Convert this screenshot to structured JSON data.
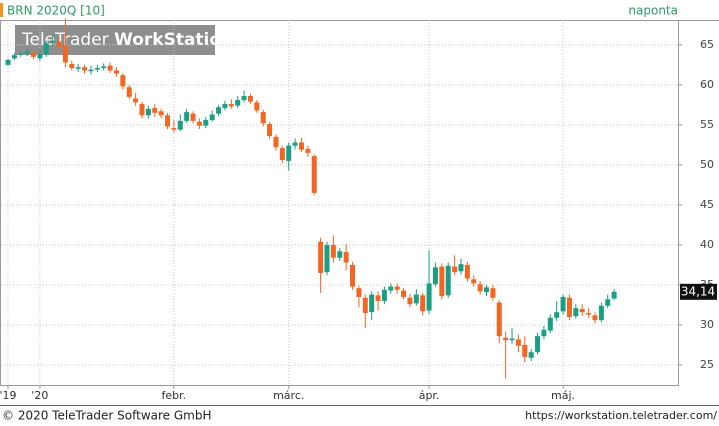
{
  "chart_data": {
    "type": "candlestick",
    "title": "BRN 2020Q [10]",
    "interval": "naponta",
    "watermark": [
      "TeleTrader",
      "WorkStation"
    ],
    "footer_left": "© 2020 TeleTrader Software GmbH",
    "footer_right": "https://workstation.teletrader.com/",
    "categories": [
      null,
      null,
      null,
      null,
      null,
      null,
      null,
      null,
      null,
      null,
      null,
      null,
      null,
      null,
      null,
      null,
      null,
      null,
      null,
      null,
      null,
      null,
      null,
      null,
      null,
      null,
      null,
      null,
      null,
      null,
      null,
      null,
      null,
      null,
      null,
      null,
      null,
      null,
      null,
      null,
      null,
      null,
      null,
      null,
      null,
      null,
      null,
      null,
      null,
      null,
      null,
      null,
      null,
      null,
      null,
      null,
      null,
      null,
      null,
      null,
      null,
      null,
      null,
      null,
      null,
      null,
      null,
      null,
      null,
      null,
      null,
      null,
      null,
      null,
      null,
      null,
      null,
      null,
      null,
      null,
      null,
      null,
      null,
      null,
      null,
      null,
      null,
      null,
      null,
      null,
      null,
      null,
      null,
      null,
      null,
      null
    ],
    "open": [
      62.5,
      63.3,
      63.8,
      63.9,
      64,
      63.3,
      63.8,
      65.3,
      65.4,
      64.9,
      62.6,
      62,
      62.2,
      61.7,
      61.9,
      62.1,
      62.4,
      61.8,
      61.2,
      59.7,
      58.3,
      57.6,
      56.2,
      57.1,
      56.7,
      56.2,
      54.6,
      54.4,
      55.5,
      56.4,
      55.4,
      54.9,
      55.6,
      56.4,
      57.1,
      57.6,
      57.4,
      58.1,
      58.6,
      57.8,
      56.6,
      55.1,
      53.5,
      52.1,
      50.5,
      52.4,
      52.8,
      52,
      51.1,
      40.4,
      36.6,
      40,
      38.4,
      39.1,
      37.5,
      34.6,
      33.4,
      31.6,
      33.7,
      33,
      34.3,
      34.8,
      34.3,
      33.4,
      32.7,
      33.7,
      31.8,
      35.1,
      37.3,
      33.7,
      37.3,
      36.7,
      37.5,
      35.7,
      35.1,
      34.1,
      34.6,
      32.8,
      28.4,
      28.1,
      28.2,
      27.5,
      25.9,
      26.6,
      28.6,
      29.3,
      30.9,
      31.7,
      33.4,
      31.1,
      32,
      31.5,
      31.2,
      30.6,
      32.4,
      33.3
    ],
    "high": [
      63.3,
      64,
      64.3,
      64.5,
      64.3,
      64.4,
      65.5,
      66.3,
      66,
      68.3,
      63,
      62.6,
      62.5,
      62.4,
      62.5,
      62.7,
      62.8,
      62.2,
      61.5,
      60,
      59,
      57.9,
      57.4,
      57.6,
      57,
      56.5,
      55.6,
      56.3,
      57,
      56.7,
      55.8,
      56,
      56.8,
      57.5,
      58,
      58.2,
      58.6,
      59.3,
      58.9,
      58.1,
      56.9,
      55.4,
      53.8,
      52.4,
      52.8,
      53.3,
      53.4,
      52.4,
      51.3,
      40.9,
      40.4,
      41.2,
      39.6,
      40.1,
      37.9,
      34.9,
      33.8,
      34.2,
      34.2,
      34.8,
      35.2,
      35.2,
      34.6,
      33.9,
      34.5,
      34,
      39.3,
      37.8,
      37.7,
      37.8,
      38.7,
      38.3,
      37.9,
      36.2,
      35.5,
      35,
      35,
      33.1,
      29.2,
      29.6,
      28.8,
      28.6,
      27,
      29,
      29.9,
      31.3,
      33,
      33.8,
      33.8,
      32.6,
      32.6,
      32.1,
      31.6,
      32.8,
      33.8,
      34.5
    ],
    "low": [
      62.3,
      63.1,
      63.5,
      63.6,
      63.2,
      63,
      63.5,
      64.8,
      64.5,
      62.2,
      61.8,
      61.6,
      61.4,
      61.3,
      61.6,
      61.8,
      61.5,
      61,
      59.4,
      58.2,
      57.4,
      55.8,
      55.8,
      56,
      55.8,
      54.5,
      54,
      54.2,
      55.2,
      55.2,
      54.5,
      54.6,
      55.4,
      56.1,
      56.8,
      57,
      57.1,
      57.8,
      57.6,
      56.5,
      54.8,
      53.2,
      51.8,
      50.2,
      49.3,
      51.9,
      51.6,
      51,
      46.2,
      34,
      36.2,
      37.8,
      38,
      36.8,
      34.4,
      32.2,
      29.6,
      30.6,
      31.8,
      32.6,
      33.9,
      33.9,
      33.2,
      32.2,
      32.4,
      31.2,
      31.4,
      34.8,
      33.2,
      33.4,
      36.2,
      36.3,
      35.4,
      34.8,
      33.8,
      33.6,
      33,
      27.7,
      23.3,
      27.6,
      26.6,
      25.3,
      25.5,
      26.3,
      28.2,
      29,
      30.5,
      31.3,
      30.6,
      30.8,
      31.1,
      30.9,
      30.2,
      30.3,
      32.1,
      33.1
    ],
    "close": [
      63.1,
      63.7,
      63.9,
      64.2,
      63.5,
      63.8,
      65.2,
      65.5,
      64.8,
      62.8,
      62.1,
      62.2,
      61.8,
      61.9,
      62.1,
      62.3,
      61.8,
      61.4,
      59.8,
      58.5,
      57.8,
      56.2,
      57,
      56.5,
      56.2,
      54.8,
      54.4,
      55.5,
      56.6,
      55.5,
      54.9,
      55.6,
      56.3,
      57.2,
      57.6,
      57.3,
      58.1,
      58.6,
      57.9,
      56.8,
      55.2,
      53.6,
      52.2,
      50.6,
      52.4,
      52.8,
      51.9,
      51.5,
      46.5,
      36.5,
      40,
      38.4,
      39.2,
      37.8,
      34.8,
      33.5,
      31.5,
      33.8,
      33,
      34.4,
      34.8,
      34.4,
      33.5,
      32.6,
      33.8,
      31.7,
      35.2,
      37.2,
      33.6,
      37.4,
      36.6,
      37.6,
      35.8,
      35.2,
      34.2,
      34.7,
      33.4,
      28.6,
      28.1,
      28.3,
      27.4,
      26,
      26.6,
      28.6,
      29.4,
      30.9,
      31.6,
      33.5,
      31,
      32.1,
      31.6,
      31.3,
      30.6,
      32.4,
      33.2,
      34.14
    ],
    "up_color": "#1b9e86",
    "down_color": "#f26522",
    "last_price": {
      "value": 34.14,
      "label": "34,14"
    },
    "ylim": [
      22.5,
      68.1
    ],
    "yticks": [
      25,
      30,
      35,
      40,
      45,
      50,
      55,
      60,
      65
    ],
    "xticks": [
      {
        "value": 0,
        "label": "'19"
      },
      {
        "value": 5,
        "label": "'20"
      },
      {
        "value": 26,
        "label": "febr."
      },
      {
        "value": 44,
        "label": "márc."
      },
      {
        "value": 66,
        "label": "ápr."
      },
      {
        "value": 87,
        "label": "máj."
      }
    ],
    "grid": true
  }
}
